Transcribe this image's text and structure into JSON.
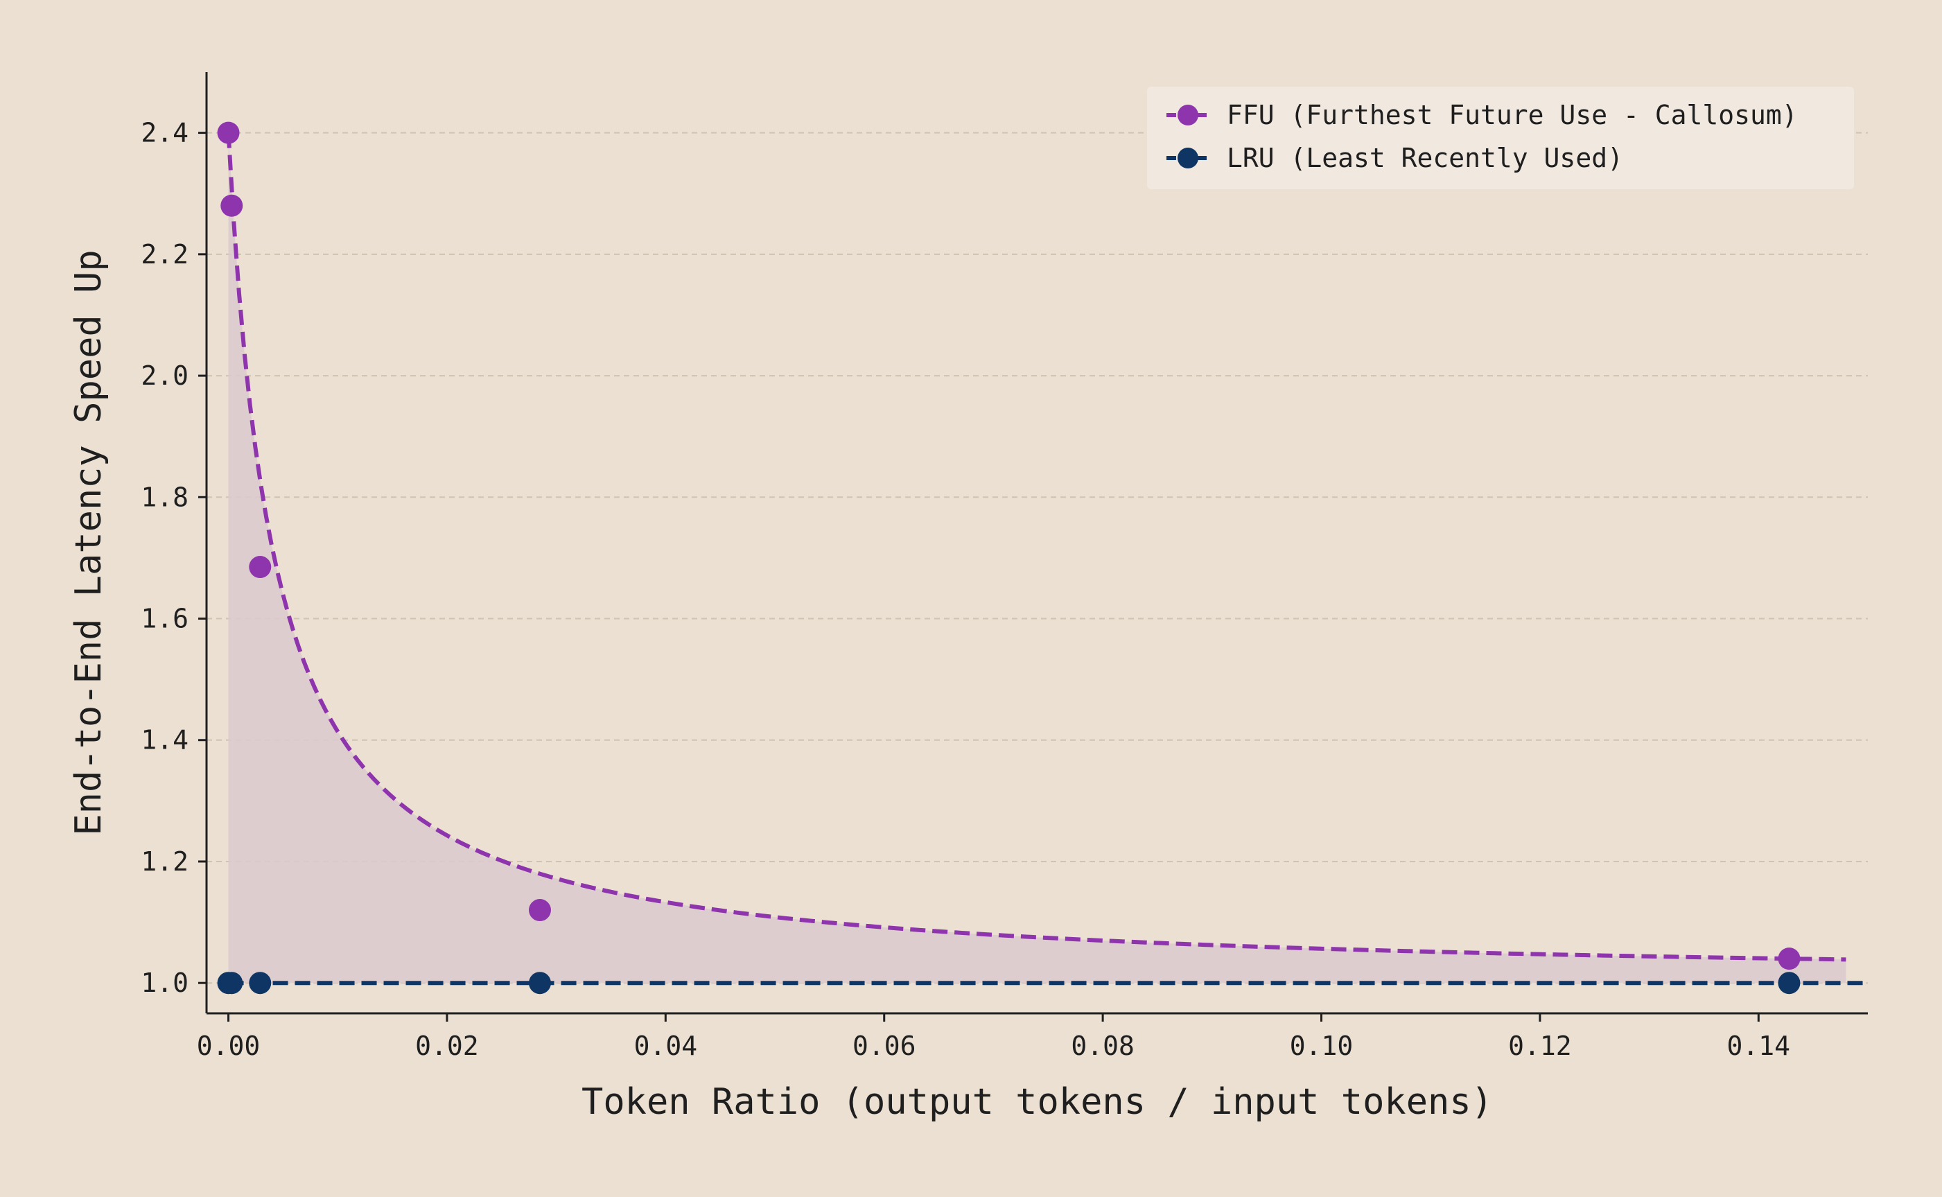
{
  "chart_data": {
    "type": "line",
    "title": "",
    "xlabel": "Token Ratio (output tokens / input tokens)",
    "ylabel": "End-to-End Latency Speed Up",
    "xlim": [
      -0.002,
      0.15
    ],
    "ylim": [
      0.95,
      2.5
    ],
    "x_ticks": [
      0.0,
      0.02,
      0.04,
      0.06,
      0.08,
      0.1,
      0.12,
      0.14
    ],
    "x_tick_labels": [
      "0.00",
      "0.02",
      "0.04",
      "0.06",
      "0.08",
      "0.10",
      "0.12",
      "0.14"
    ],
    "y_ticks": [
      1.0,
      1.2,
      1.4,
      1.6,
      1.8,
      2.0,
      2.2,
      2.4
    ],
    "y_tick_labels": [
      "1.0",
      "1.2",
      "1.4",
      "1.6",
      "1.8",
      "2.0",
      "2.2",
      "2.4"
    ],
    "grid": "horizontal dashed",
    "legend_position": "top-right",
    "series": [
      {
        "name": "FFU (Furthest Future Use - Callosum)",
        "color": "#8E35AE",
        "marker": "circle",
        "points": [
          {
            "x": 0.0,
            "y": 2.4
          },
          {
            "x": 0.0003,
            "y": 2.28
          },
          {
            "x": 0.0029,
            "y": 1.685
          },
          {
            "x": 0.0285,
            "y": 1.12
          },
          {
            "x": 0.1428,
            "y": 1.04
          }
        ],
        "fit_curve": {
          "style": "dashed",
          "filled_to": 1.0,
          "fill_color": "#DCC9CE"
        }
      },
      {
        "name": "LRU (Least Recently Used)",
        "color": "#0E3563",
        "marker": "circle",
        "points": [
          {
            "x": 0.0,
            "y": 1.0
          },
          {
            "x": 0.0003,
            "y": 1.0
          },
          {
            "x": 0.0029,
            "y": 1.0
          },
          {
            "x": 0.0285,
            "y": 1.0
          },
          {
            "x": 0.1428,
            "y": 1.0
          }
        ],
        "line_style": "dashed"
      }
    ]
  }
}
